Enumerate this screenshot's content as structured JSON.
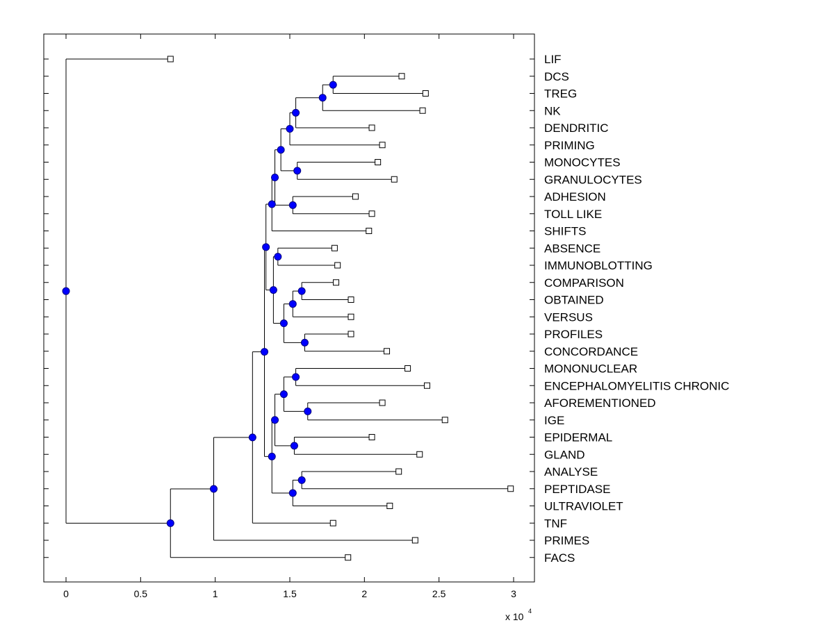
{
  "chart_data": {
    "type": "dendrogram",
    "title": "",
    "xlabel": "",
    "ylabel": "",
    "x_multiplier_label": "x 10",
    "x_multiplier_exponent": "4",
    "xlim": [
      -0.15,
      3.15
    ],
    "x_scale": 10000,
    "x_ticks": [
      0,
      0.5,
      1,
      1.5,
      2,
      2.5,
      3
    ],
    "x_tick_labels": [
      "0",
      "0.5",
      "1",
      "1.5",
      "2",
      "2.5",
      "3"
    ],
    "leaves": [
      {
        "name": "LIF",
        "value": 0.7
      },
      {
        "name": "DCS",
        "value": 2.25
      },
      {
        "name": "TREG",
        "value": 2.41
      },
      {
        "name": "NK",
        "value": 2.39
      },
      {
        "name": "DENDRITIC",
        "value": 2.05
      },
      {
        "name": "PRIMING",
        "value": 2.12
      },
      {
        "name": "MONOCYTES",
        "value": 2.09
      },
      {
        "name": "GRANULOCYTES",
        "value": 2.2
      },
      {
        "name": "ADHESION",
        "value": 1.94
      },
      {
        "name": "TOLL LIKE",
        "value": 2.05
      },
      {
        "name": "SHIFTS",
        "value": 2.03
      },
      {
        "name": "ABSENCE",
        "value": 1.8
      },
      {
        "name": "IMMUNOBLOTTING",
        "value": 1.82
      },
      {
        "name": "COMPARISON",
        "value": 1.81
      },
      {
        "name": "OBTAINED",
        "value": 1.91
      },
      {
        "name": "VERSUS",
        "value": 1.91
      },
      {
        "name": "PROFILES",
        "value": 1.91
      },
      {
        "name": "CONCORDANCE",
        "value": 2.15
      },
      {
        "name": "MONONUCLEAR",
        "value": 2.29
      },
      {
        "name": "ENCEPHALOMYELITIS CHRONIC",
        "value": 2.42
      },
      {
        "name": "AFOREMENTIONED",
        "value": 2.12
      },
      {
        "name": "IGE",
        "value": 2.54
      },
      {
        "name": "EPIDERMAL",
        "value": 2.05
      },
      {
        "name": "GLAND",
        "value": 2.37
      },
      {
        "name": "ANALYSE",
        "value": 2.23
      },
      {
        "name": "PEPTIDASE",
        "value": 2.98
      },
      {
        "name": "ULTRAVIOLET",
        "value": 2.17
      },
      {
        "name": "TNF",
        "value": 1.79
      },
      {
        "name": "PRIMES",
        "value": 2.34
      },
      {
        "name": "FACS",
        "value": 1.89
      }
    ],
    "nodes": [
      {
        "id": "A1",
        "value": 1.79,
        "children": [
          "DCS",
          "TREG"
        ]
      },
      {
        "id": "A2",
        "value": 1.72,
        "children": [
          "A1",
          "NK"
        ]
      },
      {
        "id": "A3",
        "value": 1.54,
        "children": [
          "A2",
          "DENDRITIC"
        ]
      },
      {
        "id": "A4",
        "value": 1.5,
        "children": [
          "A3",
          "PRIMING"
        ]
      },
      {
        "id": "A5",
        "value": 1.55,
        "children": [
          "MONOCYTES",
          "GRANULOCYTES"
        ]
      },
      {
        "id": "A6",
        "value": 1.44,
        "children": [
          "A4",
          "A5"
        ]
      },
      {
        "id": "A7",
        "value": 1.52,
        "children": [
          "ADHESION",
          "TOLL LIKE"
        ]
      },
      {
        "id": "A8",
        "value": 1.4,
        "children": [
          "A6",
          "A7"
        ]
      },
      {
        "id": "A9",
        "value": 1.38,
        "children": [
          "A8",
          "SHIFTS"
        ]
      },
      {
        "id": "B1",
        "value": 1.42,
        "children": [
          "ABSENCE",
          "IMMUNOBLOTTING"
        ]
      },
      {
        "id": "B2",
        "value": 1.58,
        "children": [
          "COMPARISON",
          "OBTAINED"
        ]
      },
      {
        "id": "B3",
        "value": 1.52,
        "children": [
          "B2",
          "VERSUS"
        ]
      },
      {
        "id": "B4",
        "value": 1.6,
        "children": [
          "PROFILES",
          "CONCORDANCE"
        ]
      },
      {
        "id": "B5",
        "value": 1.46,
        "children": [
          "B3",
          "B4"
        ]
      },
      {
        "id": "B6",
        "value": 1.39,
        "children": [
          "B1",
          "B5"
        ]
      },
      {
        "id": "B7",
        "value": 1.34,
        "children": [
          "A9",
          "B6"
        ]
      },
      {
        "id": "C1",
        "value": 1.54,
        "children": [
          "MONONUCLEAR",
          "ENCEPHALOMYELITIS CHRONIC"
        ]
      },
      {
        "id": "C2",
        "value": 1.62,
        "children": [
          "AFOREMENTIONED",
          "IGE"
        ]
      },
      {
        "id": "C3",
        "value": 1.46,
        "children": [
          "C1",
          "C2"
        ]
      },
      {
        "id": "C4",
        "value": 1.53,
        "children": [
          "EPIDERMAL",
          "GLAND"
        ]
      },
      {
        "id": "C5",
        "value": 1.4,
        "children": [
          "C3",
          "C4"
        ]
      },
      {
        "id": "C6",
        "value": 1.58,
        "children": [
          "ANALYSE",
          "PEPTIDASE"
        ]
      },
      {
        "id": "C7",
        "value": 1.52,
        "children": [
          "C6",
          "ULTRAVIOLET"
        ]
      },
      {
        "id": "C8",
        "value": 1.38,
        "children": [
          "C5",
          "C7"
        ]
      },
      {
        "id": "D1",
        "value": 1.33,
        "children": [
          "B7",
          "C8"
        ]
      },
      {
        "id": "D2",
        "value": 1.25,
        "children": [
          "D1",
          "TNF"
        ]
      },
      {
        "id": "D3",
        "value": 0.99,
        "children": [
          "D2",
          "PRIMES"
        ]
      },
      {
        "id": "D4",
        "value": 0.7,
        "children": [
          "D3",
          "FACS"
        ]
      },
      {
        "id": "ROOT",
        "value": 0.0,
        "children": [
          "LIF",
          "D4"
        ]
      }
    ],
    "colors": {
      "node_fill": "#0000ff",
      "node_stroke": "#000080",
      "leaf_fill": "#ffffff",
      "line": "#000000"
    }
  }
}
